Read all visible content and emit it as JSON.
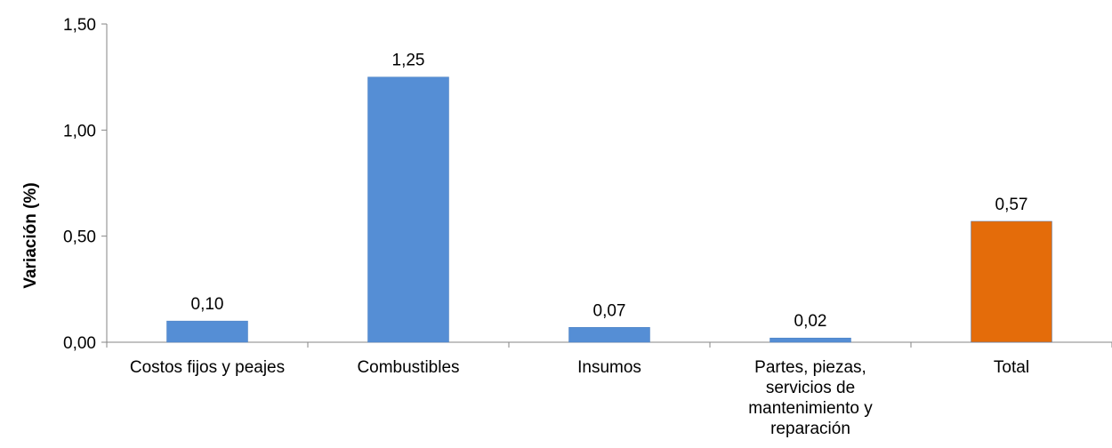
{
  "chart_data": {
    "type": "bar",
    "categories": [
      [
        "Costos fijos y peajes"
      ],
      [
        "Combustibles"
      ],
      [
        "Insumos"
      ],
      [
        "Partes, piezas,",
        "servicios de",
        "mantenimiento y",
        "reparación"
      ],
      [
        "Total"
      ]
    ],
    "values": [
      0.1,
      1.25,
      0.07,
      0.02,
      0.57
    ],
    "value_labels": [
      "0,10",
      "1,25",
      "0,07",
      "0,02",
      "0,57"
    ],
    "bar_colors": [
      "#558ED5",
      "#558ED5",
      "#558ED5",
      "#558ED5",
      "#E46C0A"
    ],
    "ylabel": "Variación (%)",
    "ylim": [
      0,
      1.5
    ],
    "yticks": [
      0,
      0.5,
      1.0,
      1.5
    ],
    "ytick_labels": [
      "0,00",
      "0,50",
      "1,00",
      "1,50"
    ],
    "grid": false,
    "legend": "none"
  }
}
